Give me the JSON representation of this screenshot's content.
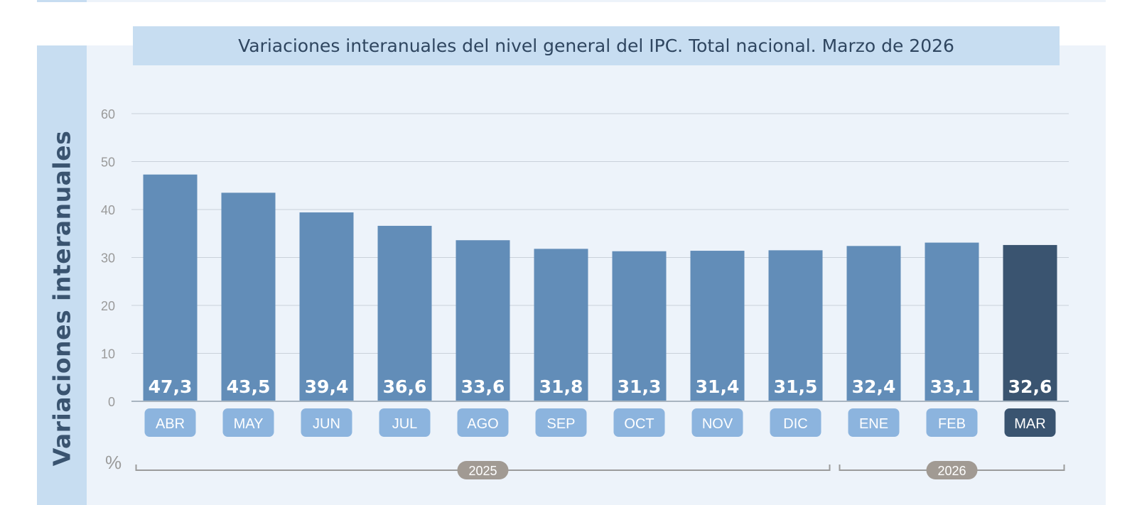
{
  "chart_data": {
    "type": "bar",
    "title": "Variaciones interanuales del nivel general del IPC. Total nacional. Marzo de 2026",
    "ylabel": "Variaciones interanuales",
    "yunit": "%",
    "ylim": [
      0,
      60
    ],
    "yticks": [
      "0",
      "10",
      "20",
      "30",
      "40",
      "50",
      "60"
    ],
    "grid": true,
    "categories": [
      "ABR",
      "MAY",
      "JUN",
      "JUL",
      "AGO",
      "SEP",
      "OCT",
      "NOV",
      "DIC",
      "ENE",
      "FEB",
      "MAR"
    ],
    "values": [
      47.3,
      43.5,
      39.4,
      36.6,
      33.6,
      31.8,
      31.3,
      31.4,
      31.5,
      32.4,
      33.1,
      32.6
    ],
    "value_labels": [
      "47,3",
      "43,5",
      "39,4",
      "36,6",
      "33,6",
      "31,8",
      "31,3",
      "31,4",
      "31,5",
      "32,4",
      "33,1",
      "32,6"
    ],
    "highlight_index": 11,
    "year_groups": [
      {
        "label": "2025",
        "from": 0,
        "to": 8
      },
      {
        "label": "2026",
        "from": 9,
        "to": 11
      }
    ],
    "colors": {
      "bar": "#628db8",
      "bar_highlight": "#3a5470",
      "cat_label": "#8cb4de",
      "cat_label_highlight": "#3a5470",
      "year_badge": "#a19a93",
      "grid": "#c9d1da",
      "axis_text": "#9a9a9a"
    }
  }
}
